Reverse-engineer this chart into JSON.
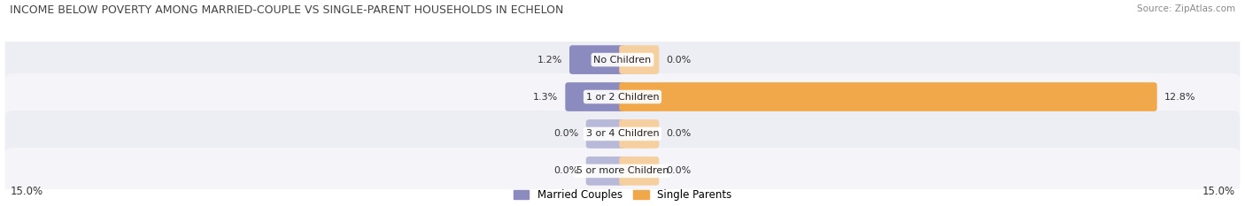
{
  "title": "INCOME BELOW POVERTY AMONG MARRIED-COUPLE VS SINGLE-PARENT HOUSEHOLDS IN ECHELON",
  "source": "Source: ZipAtlas.com",
  "categories": [
    "No Children",
    "1 or 2 Children",
    "3 or 4 Children",
    "5 or more Children"
  ],
  "married_values": [
    1.2,
    1.3,
    0.0,
    0.0
  ],
  "single_values": [
    0.0,
    12.8,
    0.0,
    0.0
  ],
  "married_color": "#8b8bbf",
  "single_color": "#f0a84a",
  "married_color_light": "#b8b8d8",
  "single_color_light": "#f5cfa0",
  "row_bg_even": "#ededf4",
  "row_bg_odd": "#f5f5f9",
  "x_max": 15.0,
  "legend_married": "Married Couples",
  "legend_single": "Single Parents",
  "title_fontsize": 9.0,
  "source_fontsize": 7.5,
  "label_fontsize": 8.5,
  "category_fontsize": 8.0,
  "value_fontsize": 8.0,
  "background_color": "#ffffff"
}
